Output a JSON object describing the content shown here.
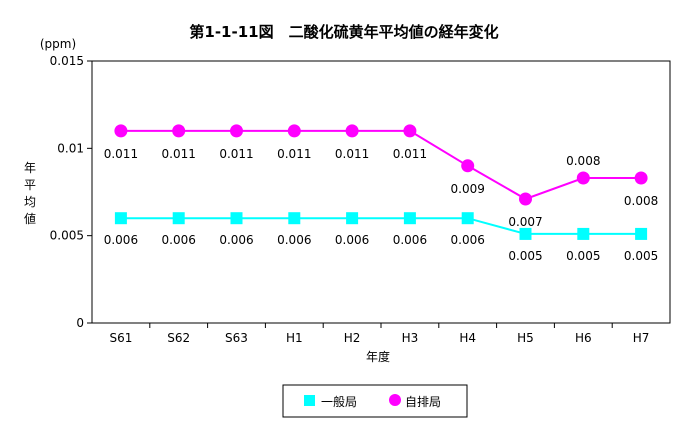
{
  "chart_data": {
    "type": "line",
    "title": "第1-1-11図　二酸化硫黄年平均値の経年変化",
    "unit": "(ppm)",
    "ylabel": "年平均値",
    "xlabel": "年度",
    "categories": [
      "S61",
      "S62",
      "S63",
      "H1",
      "H2",
      "H3",
      "H4",
      "H5",
      "H6",
      "H7"
    ],
    "ylim": [
      0,
      0.015
    ],
    "yticks": [
      "0",
      "0.005",
      "0.01",
      "0.015"
    ],
    "grid": false,
    "legend_position": "bottom",
    "series": [
      {
        "name": "一般局",
        "marker": "square",
        "color": "#00ffff",
        "values": [
          0.006,
          0.006,
          0.006,
          0.006,
          0.006,
          0.006,
          0.006,
          0.0051,
          0.0051,
          0.0051
        ],
        "labels": [
          "0.006",
          "0.006",
          "0.006",
          "0.006",
          "0.006",
          "0.006",
          "0.006",
          "0.005",
          "0.005",
          "0.005"
        ]
      },
      {
        "name": "自排局",
        "marker": "circle",
        "color": "#ff00ff",
        "values": [
          0.011,
          0.011,
          0.011,
          0.011,
          0.011,
          0.011,
          0.009,
          0.0071,
          0.0083,
          0.0083
        ],
        "labels": [
          "0.011",
          "0.011",
          "0.011",
          "0.011",
          "0.011",
          "0.011",
          "0.009",
          "0.007",
          "0.008",
          "0.008"
        ]
      }
    ]
  }
}
